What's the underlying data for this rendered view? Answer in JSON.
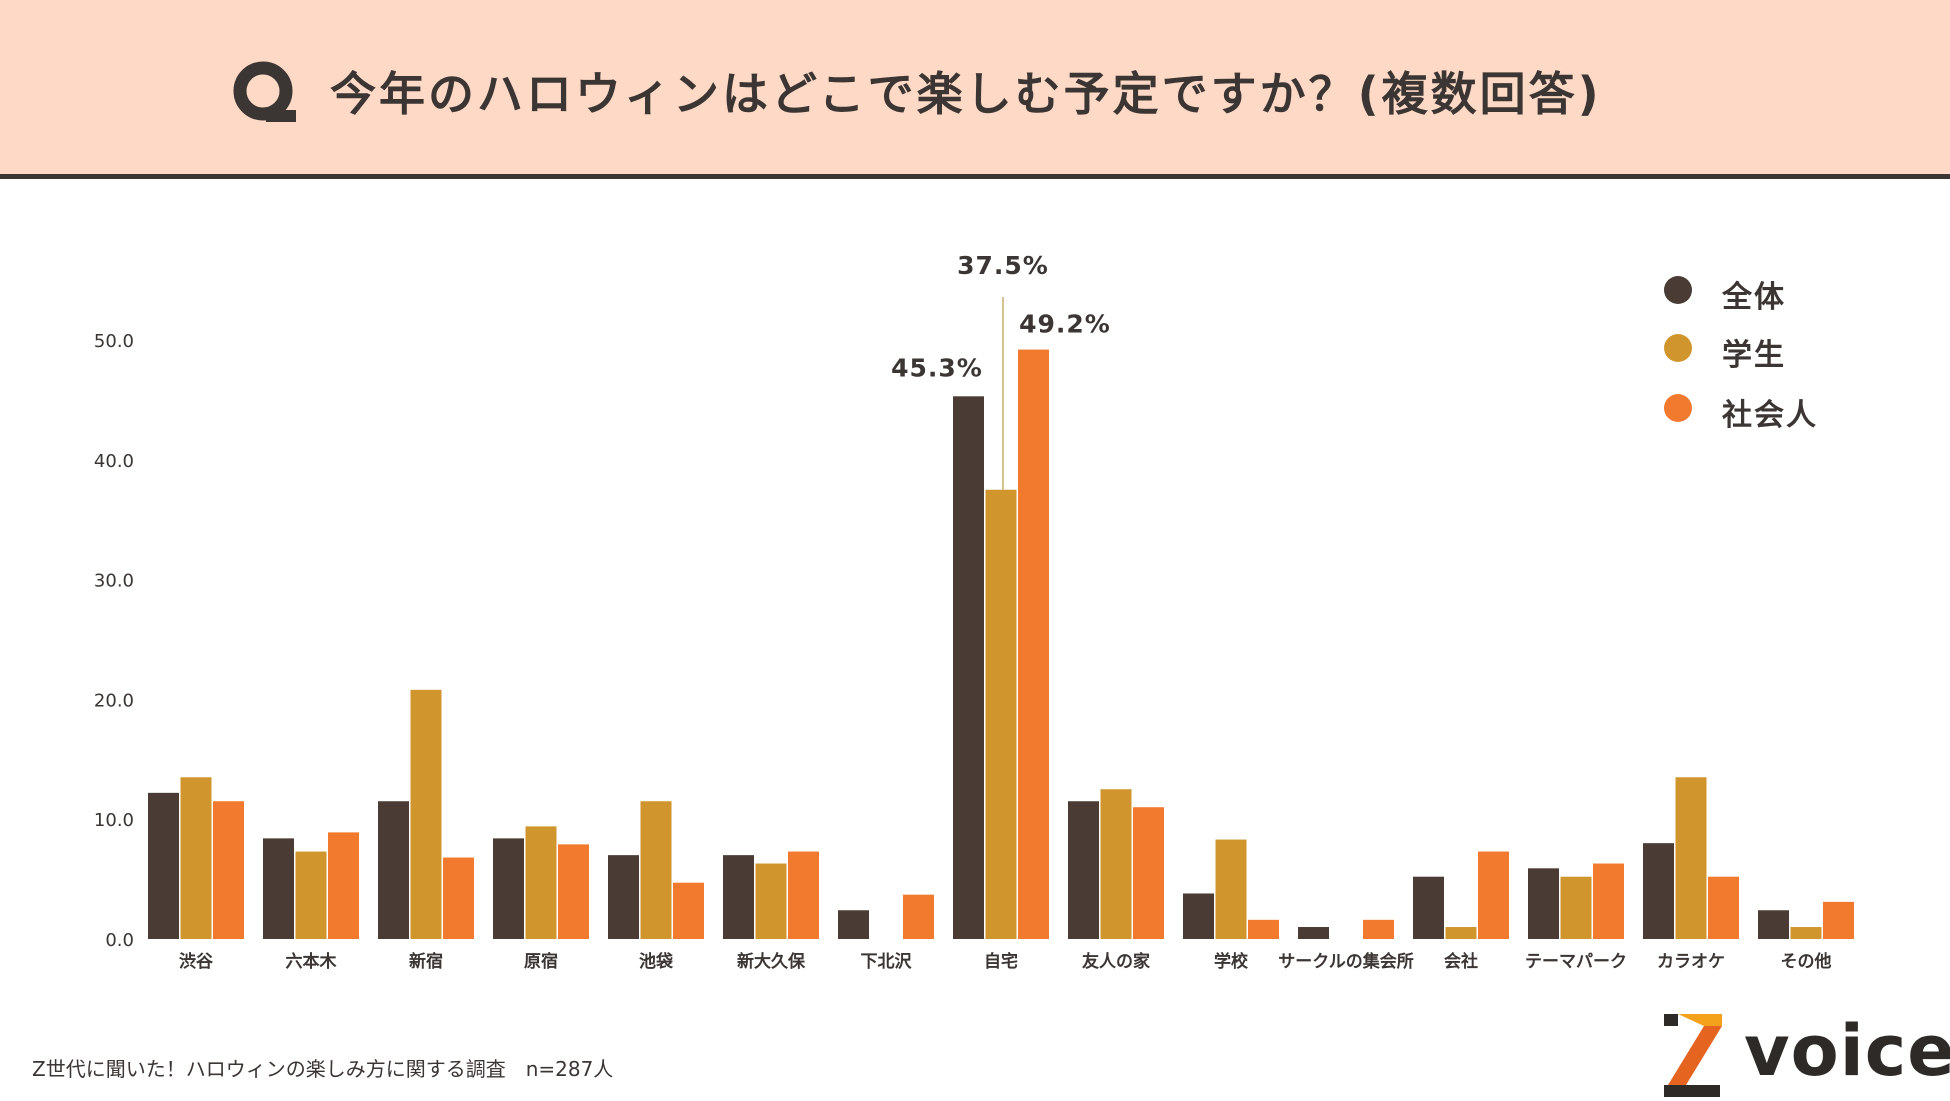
{
  "header": {
    "badge_letter": "Q",
    "title": "今年のハロウィンはどこで楽しむ予定ですか？(複数回答)"
  },
  "legend": [
    {
      "label": "全体",
      "color": "#4a3b34"
    },
    {
      "label": "学生",
      "color": "#d0962d"
    },
    {
      "label": "社会人",
      "color": "#f27a2e"
    }
  ],
  "footer": {
    "note": "Z世代に聞いた！ハロウィンの楽しみ方に関する調査　n=287人",
    "brand": "voice"
  },
  "chart_data": {
    "type": "bar",
    "title": "今年のハロウィンはどこで楽しむ予定ですか？(複数回答)",
    "xlabel": "",
    "ylabel": "",
    "ylim": [
      0,
      50
    ],
    "yticks": [
      "0.0",
      "10.0",
      "20.0",
      "30.0",
      "40.0",
      "50.0"
    ],
    "grid": false,
    "legend_position": "top-right",
    "categories": [
      "渋谷",
      "六本木",
      "新宿",
      "原宿",
      "池袋",
      "新大久保",
      "下北沢",
      "自宅",
      "友人の家",
      "学校",
      "サークルの集会所",
      "会社",
      "テーマパーク",
      "カラオケ",
      "その他"
    ],
    "series": [
      {
        "name": "全体",
        "color": "#4a3b34",
        "values": [
          12.2,
          8.4,
          11.5,
          8.4,
          7.0,
          7.0,
          2.4,
          45.3,
          11.5,
          3.8,
          1.0,
          5.2,
          5.9,
          8.0,
          2.4
        ]
      },
      {
        "name": "学生",
        "color": "#d0962d",
        "values": [
          13.5,
          7.3,
          20.8,
          9.4,
          11.5,
          6.3,
          0.0,
          37.5,
          12.5,
          8.3,
          0.0,
          1.0,
          5.2,
          13.5,
          1.0
        ]
      },
      {
        "name": "社会人",
        "color": "#f27a2e",
        "values": [
          11.5,
          8.9,
          6.8,
          7.9,
          4.7,
          7.3,
          3.7,
          49.2,
          11.0,
          1.6,
          1.6,
          7.3,
          6.3,
          5.2,
          3.1
        ]
      }
    ],
    "data_labels": [
      {
        "category": "自宅",
        "series": "全体",
        "text": "45.3%"
      },
      {
        "category": "自宅",
        "series": "学生",
        "text": "37.5%"
      },
      {
        "category": "自宅",
        "series": "社会人",
        "text": "49.2%"
      }
    ]
  }
}
